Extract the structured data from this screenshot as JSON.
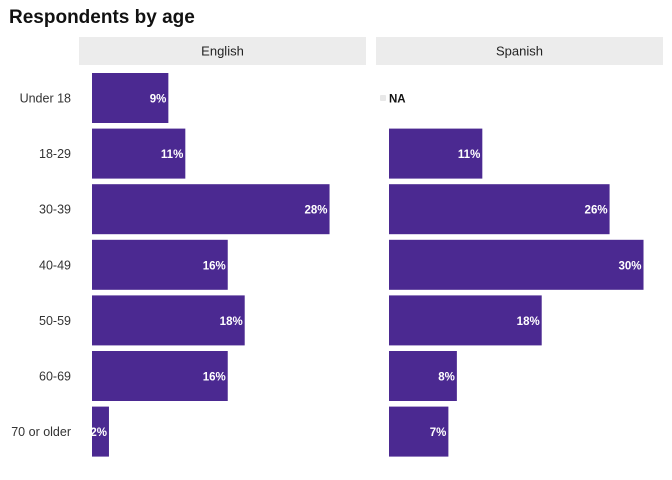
{
  "chart_data": {
    "type": "bar",
    "orientation": "horizontal",
    "title": "Respondents by age",
    "categories": [
      "Under 18",
      "18-29",
      "30-39",
      "40-49",
      "50-59",
      "60-69",
      "70 or older"
    ],
    "facets": [
      {
        "name": "English",
        "values": [
          9,
          11,
          28,
          16,
          18,
          16,
          2
        ],
        "labels": [
          "9%",
          "11%",
          "28%",
          "16%",
          "18%",
          "16%",
          "2%"
        ]
      },
      {
        "name": "Spanish",
        "values": [
          null,
          11,
          26,
          30,
          18,
          8,
          7
        ],
        "labels": [
          "NA",
          "11%",
          "26%",
          "30%",
          "18%",
          "8%",
          "7%"
        ]
      }
    ],
    "xlim": [
      0,
      31
    ],
    "grid": false,
    "bar_color": "#4b2991",
    "facet_header_color": "#ececec"
  }
}
